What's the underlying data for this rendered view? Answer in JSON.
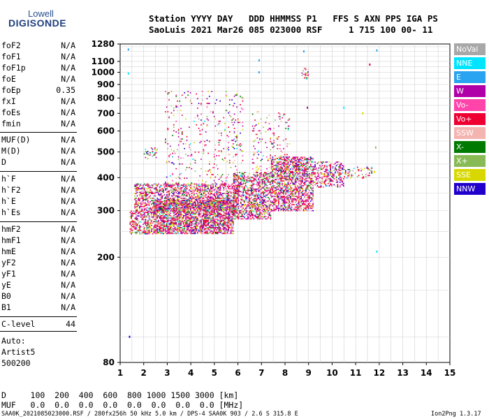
{
  "logo": {
    "top": "Lowell",
    "bottom": "DIGISONDE"
  },
  "header": {
    "labels": "Station YYYY DAY   DDD HHMMSS P1   FFS S AXN PPS IGA PS",
    "values": "SaoLuis 2021 Mar26 085 023000 RSF     1 715 100 00- 11"
  },
  "params": {
    "group1": [
      {
        "name": "foF2",
        "value": "N/A"
      },
      {
        "name": "foF1",
        "value": "N/A"
      },
      {
        "name": "foF1p",
        "value": "N/A"
      },
      {
        "name": "foE",
        "value": "N/A"
      },
      {
        "name": "foEp",
        "value": "0.35"
      },
      {
        "name": "fxI",
        "value": "N/A"
      },
      {
        "name": "foEs",
        "value": "N/A"
      },
      {
        "name": "fmin",
        "value": "N/A"
      }
    ],
    "group2": [
      {
        "name": "MUF(D)",
        "value": "N/A"
      },
      {
        "name": "M(D)",
        "value": "N/A"
      },
      {
        "name": "D",
        "value": "N/A"
      }
    ],
    "group3": [
      {
        "name": "h`F",
        "value": "N/A"
      },
      {
        "name": "h`F2",
        "value": "N/A"
      },
      {
        "name": "h`E",
        "value": "N/A"
      },
      {
        "name": "h`Es",
        "value": "N/A"
      }
    ],
    "group4": [
      {
        "name": "hmF2",
        "value": "N/A"
      },
      {
        "name": "hmF1",
        "value": "N/A"
      },
      {
        "name": "hmE",
        "value": "N/A"
      },
      {
        "name": "yF2",
        "value": "N/A"
      },
      {
        "name": "yF1",
        "value": "N/A"
      },
      {
        "name": "yE",
        "value": "N/A"
      },
      {
        "name": "B0",
        "value": "N/A"
      },
      {
        "name": "B1",
        "value": "N/A"
      }
    ],
    "clevel": {
      "name": "C-level",
      "value": "44"
    }
  },
  "auto": {
    "line1": "Auto:",
    "line2": "Artist5",
    "line3": "500200"
  },
  "legend": [
    {
      "label": "NoVal",
      "color": "#a8a8a8"
    },
    {
      "label": "NNE",
      "color": "#00e5ff"
    },
    {
      "label": "E",
      "color": "#2aa3f0"
    },
    {
      "label": "W",
      "color": "#b000a8"
    },
    {
      "label": "Vo-",
      "color": "#ff44aa"
    },
    {
      "label": "Vo+",
      "color": "#ee0033"
    },
    {
      "label": "SSW",
      "color": "#f4b4b0"
    },
    {
      "label": "X-",
      "color": "#007a00"
    },
    {
      "label": "X+",
      "color": "#88bb55"
    },
    {
      "label": "SSE",
      "color": "#d8d800"
    },
    {
      "label": "NNW",
      "color": "#2200cc"
    }
  ],
  "dtable": {
    "row1": "D     100  200  400  600  800 1000 1500 3000 [km]",
    "row2": "MUF   0.0  0.0  0.0  0.0  0.0  0.0  0.0  0.0 [MHz]"
  },
  "footer": {
    "left": "SAA0K_2021085023000.RSF / 280fx256h 50 kHz 5.0 km / DPS-4 SAA0K 903 / 2.6 S 315.8 E",
    "right": "Ion2Png 1.3.17"
  },
  "chart_data": {
    "type": "scatter",
    "title": "",
    "xlabel": "",
    "ylabel": "",
    "xlim": [
      1,
      15
    ],
    "ylim": [
      80,
      1280
    ],
    "xticks": [
      1,
      2,
      3,
      4,
      5,
      6,
      7,
      8,
      9,
      10,
      11,
      12,
      13,
      14,
      15
    ],
    "yticks": [
      80,
      200,
      300,
      400,
      500,
      600,
      700,
      800,
      900,
      1000,
      1100,
      1280
    ],
    "grid": true,
    "y_scale": "log",
    "regions": [
      {
        "fmin": 1.4,
        "fmax": 2.4,
        "hmin": 245,
        "hmax": 300,
        "density": 0.55
      },
      {
        "fmin": 2.4,
        "fmax": 5.8,
        "hmin": 245,
        "hmax": 330,
        "density": 0.75
      },
      {
        "fmin": 1.6,
        "fmax": 6.0,
        "hmin": 300,
        "hmax": 380,
        "density": 0.5
      },
      {
        "fmin": 5.8,
        "fmax": 7.4,
        "hmin": 280,
        "hmax": 420,
        "density": 0.55
      },
      {
        "fmin": 7.4,
        "fmax": 9.2,
        "hmin": 300,
        "hmax": 480,
        "density": 0.6
      },
      {
        "fmin": 9.2,
        "fmax": 10.5,
        "hmin": 370,
        "hmax": 460,
        "density": 0.4
      },
      {
        "fmin": 10.5,
        "fmax": 11.7,
        "hmin": 400,
        "hmax": 440,
        "density": 0.25
      },
      {
        "fmin": 2.0,
        "fmax": 2.6,
        "hmin": 470,
        "hmax": 520,
        "density": 0.25
      },
      {
        "fmin": 2.9,
        "fmax": 6.2,
        "hmin": 330,
        "hmax": 850,
        "density": 0.07
      },
      {
        "fmin": 6.6,
        "fmax": 8.2,
        "hmin": 360,
        "hmax": 720,
        "density": 0.08
      },
      {
        "fmin": 8.7,
        "fmax": 9.0,
        "hmin": 930,
        "hmax": 1040,
        "density": 0.35
      }
    ],
    "isolated_points": [
      {
        "f": 1.4,
        "h": 100,
        "color": "#2200cc"
      },
      {
        "f": 1.35,
        "h": 1220,
        "color": "#2aa3f0"
      },
      {
        "f": 1.35,
        "h": 990,
        "color": "#00e5ff"
      },
      {
        "f": 6.9,
        "h": 1110,
        "color": "#2aa3f0"
      },
      {
        "f": 6.9,
        "h": 1000,
        "color": "#2aa3f0"
      },
      {
        "f": 8.8,
        "h": 1200,
        "color": "#2aa3f0"
      },
      {
        "f": 8.95,
        "h": 735,
        "color": "#b000a8"
      },
      {
        "f": 10.5,
        "h": 735,
        "color": "#00e5ff"
      },
      {
        "f": 11.6,
        "h": 1070,
        "color": "#ee0033"
      },
      {
        "f": 11.9,
        "h": 1210,
        "color": "#2aa3f0"
      },
      {
        "f": 11.85,
        "h": 520,
        "color": "#88bb55"
      },
      {
        "f": 11.9,
        "h": 210,
        "color": "#00e5ff"
      },
      {
        "f": 11.8,
        "h": 420,
        "color": "#d8d800"
      },
      {
        "f": 11.3,
        "h": 700,
        "color": "#d8d800"
      }
    ]
  }
}
